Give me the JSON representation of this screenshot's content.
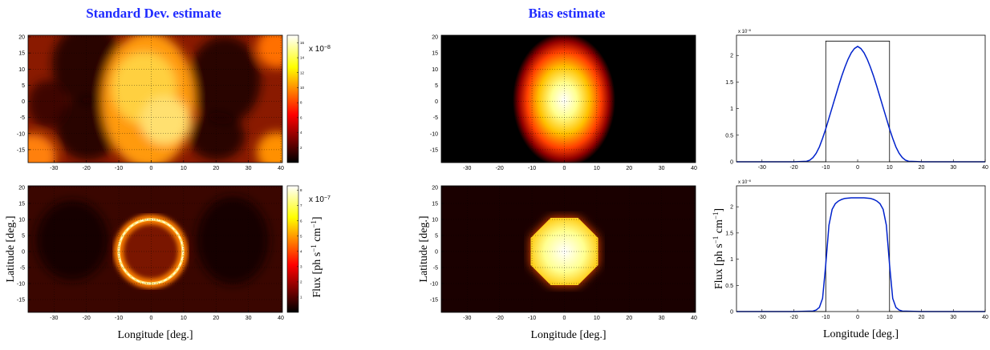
{
  "chart_data": [
    {
      "type": "heatmap",
      "title": "Standard Dev. estimate",
      "xlim": [
        -38,
        40.5
      ],
      "xticks": [
        -30,
        -20,
        -10,
        0,
        10,
        20,
        30,
        40
      ],
      "ylim": [
        -19,
        20.5
      ],
      "yticks": [
        -15,
        -10,
        -5,
        0,
        5,
        10,
        15,
        20
      ],
      "grid": true,
      "colorbar": {
        "lim": [
          0,
          17
        ],
        "ticks": [
          2,
          4,
          6,
          8,
          10,
          12,
          14,
          16
        ],
        "scale_base": "x 10",
        "scale_exp": "−8"
      }
    },
    {
      "type": "heatmap",
      "xlabel": "Longitude [deg.]",
      "ylabel": "Latitude [deg.]",
      "xlim": [
        -38,
        40.5
      ],
      "xticks": [
        -30,
        -20,
        -10,
        0,
        10,
        20,
        30,
        40
      ],
      "ylim": [
        -19,
        20.5
      ],
      "yticks": [
        -15,
        -10,
        -5,
        0,
        5,
        10,
        15,
        20
      ],
      "grid": true,
      "colorbar": {
        "lim": [
          0,
          8.3
        ],
        "ticks": [
          1,
          2,
          3,
          4,
          5,
          6,
          7,
          8
        ],
        "scale_base": "x 10",
        "scale_exp": "−7",
        "label_parts": [
          "Flux [ph s",
          "−1",
          " cm",
          "−1",
          "]"
        ]
      }
    },
    {
      "type": "heatmap",
      "title": "Bias estimate",
      "xlim": [
        -38,
        40.5
      ],
      "xticks": [
        -30,
        -20,
        -10,
        0,
        10,
        20,
        30,
        40
      ],
      "ylim": [
        -19,
        20.5
      ],
      "yticks": [
        -15,
        -10,
        -5,
        0,
        5,
        10,
        15,
        20
      ],
      "grid": true
    },
    {
      "type": "heatmap",
      "xlabel": "Longitude [deg.]",
      "ylabel": "Latitude [deg.]",
      "xlim": [
        -38,
        40.5
      ],
      "xticks": [
        -30,
        -20,
        -10,
        0,
        10,
        20,
        30,
        40
      ],
      "ylim": [
        -19,
        20.5
      ],
      "yticks": [
        -15,
        -10,
        -5,
        0,
        5,
        10,
        15,
        20
      ],
      "grid": true
    },
    {
      "type": "line",
      "xlim": [
        -38,
        40
      ],
      "xticks": [
        -30,
        -20,
        -10,
        0,
        10,
        20,
        30,
        40
      ],
      "ylim": [
        0,
        2.38
      ],
      "yticks": [
        0,
        0.5,
        1,
        1.5,
        2
      ],
      "grid": false,
      "yscale_base": "x 10",
      "yscale_exp": "−8",
      "series": [
        {
          "color": "#000000",
          "x": [
            -38,
            -10,
            -10,
            10,
            10,
            40
          ],
          "values": [
            0,
            0,
            2.27,
            2.27,
            0,
            0
          ]
        },
        {
          "color": "#0022cc",
          "x": [
            -38,
            -20,
            -16,
            -15,
            -14,
            -13,
            -12,
            -11,
            -10,
            -9,
            -8,
            -7,
            -6,
            -5,
            -4,
            -3,
            -2,
            -1,
            0,
            1,
            2,
            3,
            4,
            5,
            6,
            7,
            8,
            9,
            10,
            11,
            12,
            13,
            14,
            15,
            16,
            20,
            40
          ],
          "values": [
            0,
            0,
            0.01,
            0.03,
            0.08,
            0.16,
            0.28,
            0.44,
            0.62,
            0.82,
            1.02,
            1.22,
            1.42,
            1.61,
            1.78,
            1.93,
            2.05,
            2.13,
            2.17,
            2.13,
            2.05,
            1.93,
            1.78,
            1.61,
            1.42,
            1.22,
            1.02,
            0.82,
            0.62,
            0.44,
            0.28,
            0.16,
            0.08,
            0.03,
            0.01,
            0,
            0
          ]
        }
      ]
    },
    {
      "type": "line",
      "xlabel": "Longitude [deg.]",
      "ylabel_parts": [
        "Flux [ph s",
        "−1",
        " cm",
        "−1",
        "]"
      ],
      "xlim": [
        -38,
        40
      ],
      "xticks": [
        -30,
        -20,
        -10,
        0,
        10,
        20,
        30,
        40
      ],
      "ylim": [
        0,
        2.4
      ],
      "yticks": [
        0,
        0.5,
        1,
        1.5,
        2
      ],
      "grid": false,
      "yscale_base": "x 10",
      "yscale_exp": "−8",
      "series": [
        {
          "color": "#000000",
          "x": [
            -38,
            -10,
            -10,
            10,
            10,
            40
          ],
          "values": [
            0,
            0,
            2.26,
            2.26,
            0,
            0
          ]
        },
        {
          "color": "#0022cc",
          "x": [
            -38,
            -20,
            -14,
            -13,
            -12,
            -11,
            -10,
            -9,
            -8,
            -7,
            -6,
            -5,
            -4,
            -2,
            0,
            2,
            4,
            5,
            6,
            7,
            8,
            9,
            10,
            11,
            12,
            13,
            14,
            20,
            40
          ],
          "values": [
            0,
            0,
            0.01,
            0.03,
            0.08,
            0.25,
            0.9,
            1.65,
            1.95,
            2.06,
            2.11,
            2.14,
            2.16,
            2.17,
            2.17,
            2.17,
            2.16,
            2.14,
            2.11,
            2.06,
            1.95,
            1.65,
            0.9,
            0.25,
            0.08,
            0.03,
            0.01,
            0,
            0
          ]
        }
      ]
    }
  ]
}
